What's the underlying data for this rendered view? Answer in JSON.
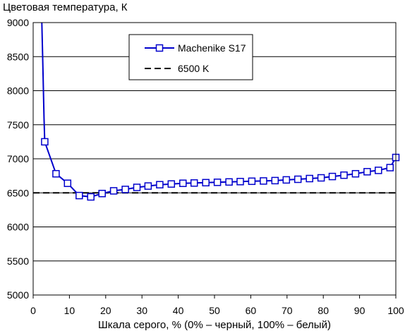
{
  "chart_data": {
    "type": "line",
    "title": "",
    "ylabel": "Цветовая температура, К",
    "xlabel": "Шкала серого, % (0% – черный, 100% – белый)",
    "xlim": [
      0,
      100
    ],
    "ylim": [
      5000,
      9000
    ],
    "x_ticks": [
      0,
      10,
      20,
      30,
      40,
      50,
      60,
      70,
      80,
      90,
      100
    ],
    "y_ticks": [
      5000,
      5500,
      6000,
      6500,
      7000,
      7500,
      8000,
      8500,
      9000
    ],
    "grid": "horizontal",
    "legend_position": "top-center",
    "series": [
      {
        "name": "Machenike S17",
        "color": "#0000cc",
        "marker": "square",
        "x": [
          3.2,
          6.3,
          9.5,
          12.7,
          15.9,
          19.0,
          22.2,
          25.4,
          28.6,
          31.7,
          34.9,
          38.1,
          41.3,
          44.4,
          47.6,
          50.8,
          54.0,
          57.1,
          60.3,
          63.5,
          66.7,
          69.8,
          73.0,
          76.2,
          79.4,
          82.5,
          85.7,
          88.9,
          92.1,
          95.2,
          98.4,
          100
        ],
        "y": [
          7250,
          6780,
          6640,
          6460,
          6440,
          6490,
          6530,
          6550,
          6580,
          6600,
          6620,
          6630,
          6640,
          6645,
          6650,
          6655,
          6660,
          6665,
          6670,
          6675,
          6680,
          6690,
          6700,
          6710,
          6720,
          6740,
          6760,
          6780,
          6810,
          6830,
          6870,
          7020
        ],
        "lead_in": {
          "x": [
            2.4,
            2.7,
            3.0
          ],
          "y": [
            9000,
            8300,
            7600
          ]
        }
      },
      {
        "name": "6500 K",
        "color": "#000000",
        "dash": true,
        "y": 6500
      }
    ]
  }
}
